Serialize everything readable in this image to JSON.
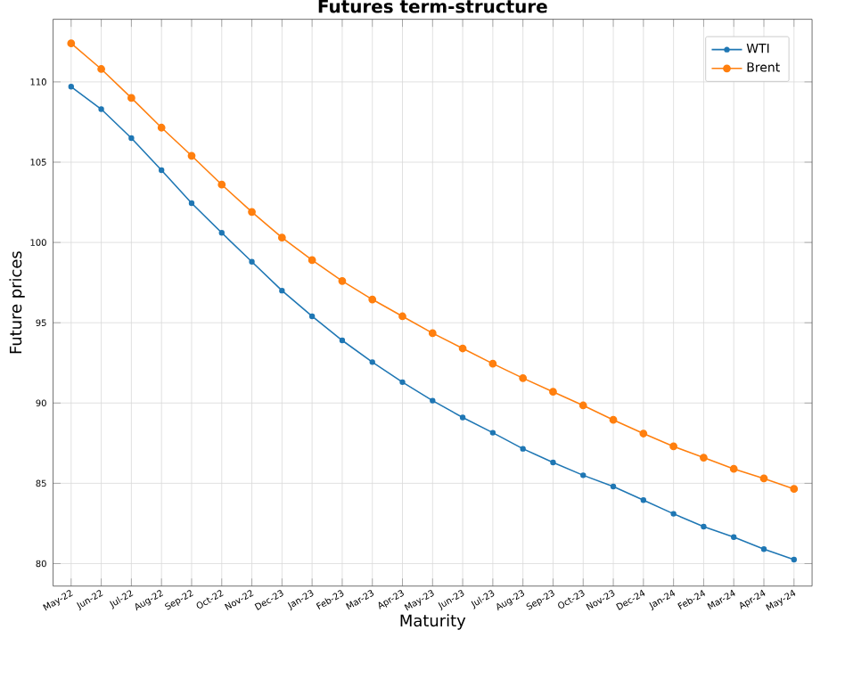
{
  "chart_data": {
    "type": "line",
    "title": "**Futures term-structure**",
    "xlabel": "Maturity",
    "ylabel": "Future prices",
    "categories": [
      "May-22",
      "Jun-22",
      "Jul-22",
      "Aug-22",
      "Sep-22",
      "Oct-22",
      "Nov-22",
      "Dec-23",
      "Jan-23",
      "Feb-23",
      "Mar-23",
      "Apr-23",
      "May-23",
      "Jun-23",
      "Jul-23",
      "Aug-23",
      "Sep-23",
      "Oct-23",
      "Nov-23",
      "Dec-24",
      "Jan-24",
      "Feb-24",
      "Mar-24",
      "Apr-24",
      "May-24"
    ],
    "series": [
      {
        "name": "WTI",
        "color": "#1f77b4",
        "values": [
          109.7,
          108.3,
          106.5,
          104.5,
          102.45,
          100.6,
          98.8,
          97.0,
          95.4,
          93.9,
          92.55,
          91.3,
          90.15,
          89.1,
          88.15,
          87.15,
          86.3,
          85.5,
          84.8,
          83.95,
          83.1,
          82.3,
          81.65,
          80.9,
          80.25
        ]
      },
      {
        "name": "Brent",
        "color": "#ff7f0e",
        "values": [
          112.4,
          110.8,
          109.0,
          107.15,
          105.4,
          103.6,
          101.9,
          100.3,
          98.9,
          97.6,
          96.45,
          95.4,
          94.35,
          93.4,
          92.45,
          91.55,
          90.7,
          89.85,
          88.95,
          88.1,
          87.3,
          86.6,
          85.9,
          85.3,
          84.65
        ]
      }
    ],
    "ylim": [
      78.6,
      113.9
    ],
    "yticks": [
      80,
      85,
      90,
      95,
      100,
      105,
      110
    ],
    "grid": true,
    "legend": "top right",
    "marker": "circle",
    "line_style": "solid"
  }
}
